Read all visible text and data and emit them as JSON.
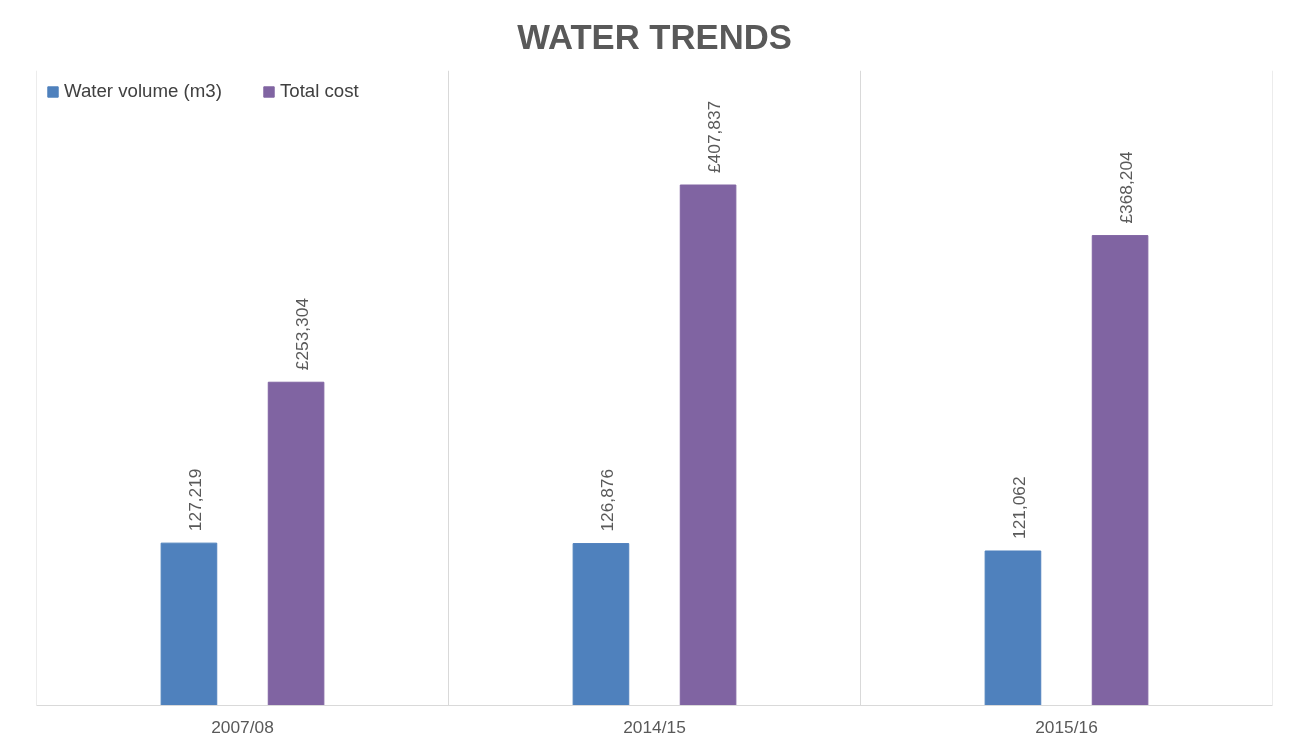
{
  "chart_data": {
    "type": "bar",
    "title": "WATER TRENDS",
    "categories": [
      "2007/08",
      "2014/15",
      "2015/16"
    ],
    "series": [
      {
        "name": "Water volume (m3)",
        "color": "#4f81bd",
        "values": [
          127219,
          126876,
          121062
        ],
        "value_labels": [
          "127,219",
          "126,876",
          "121,062"
        ]
      },
      {
        "name": "Total cost",
        "color": "#8064a2",
        "values": [
          253304,
          407837,
          368204
        ],
        "value_labels": [
          "£253,304",
          "£407,837",
          "£368,204"
        ]
      }
    ],
    "legend": "top left",
    "grid": "x"
  }
}
